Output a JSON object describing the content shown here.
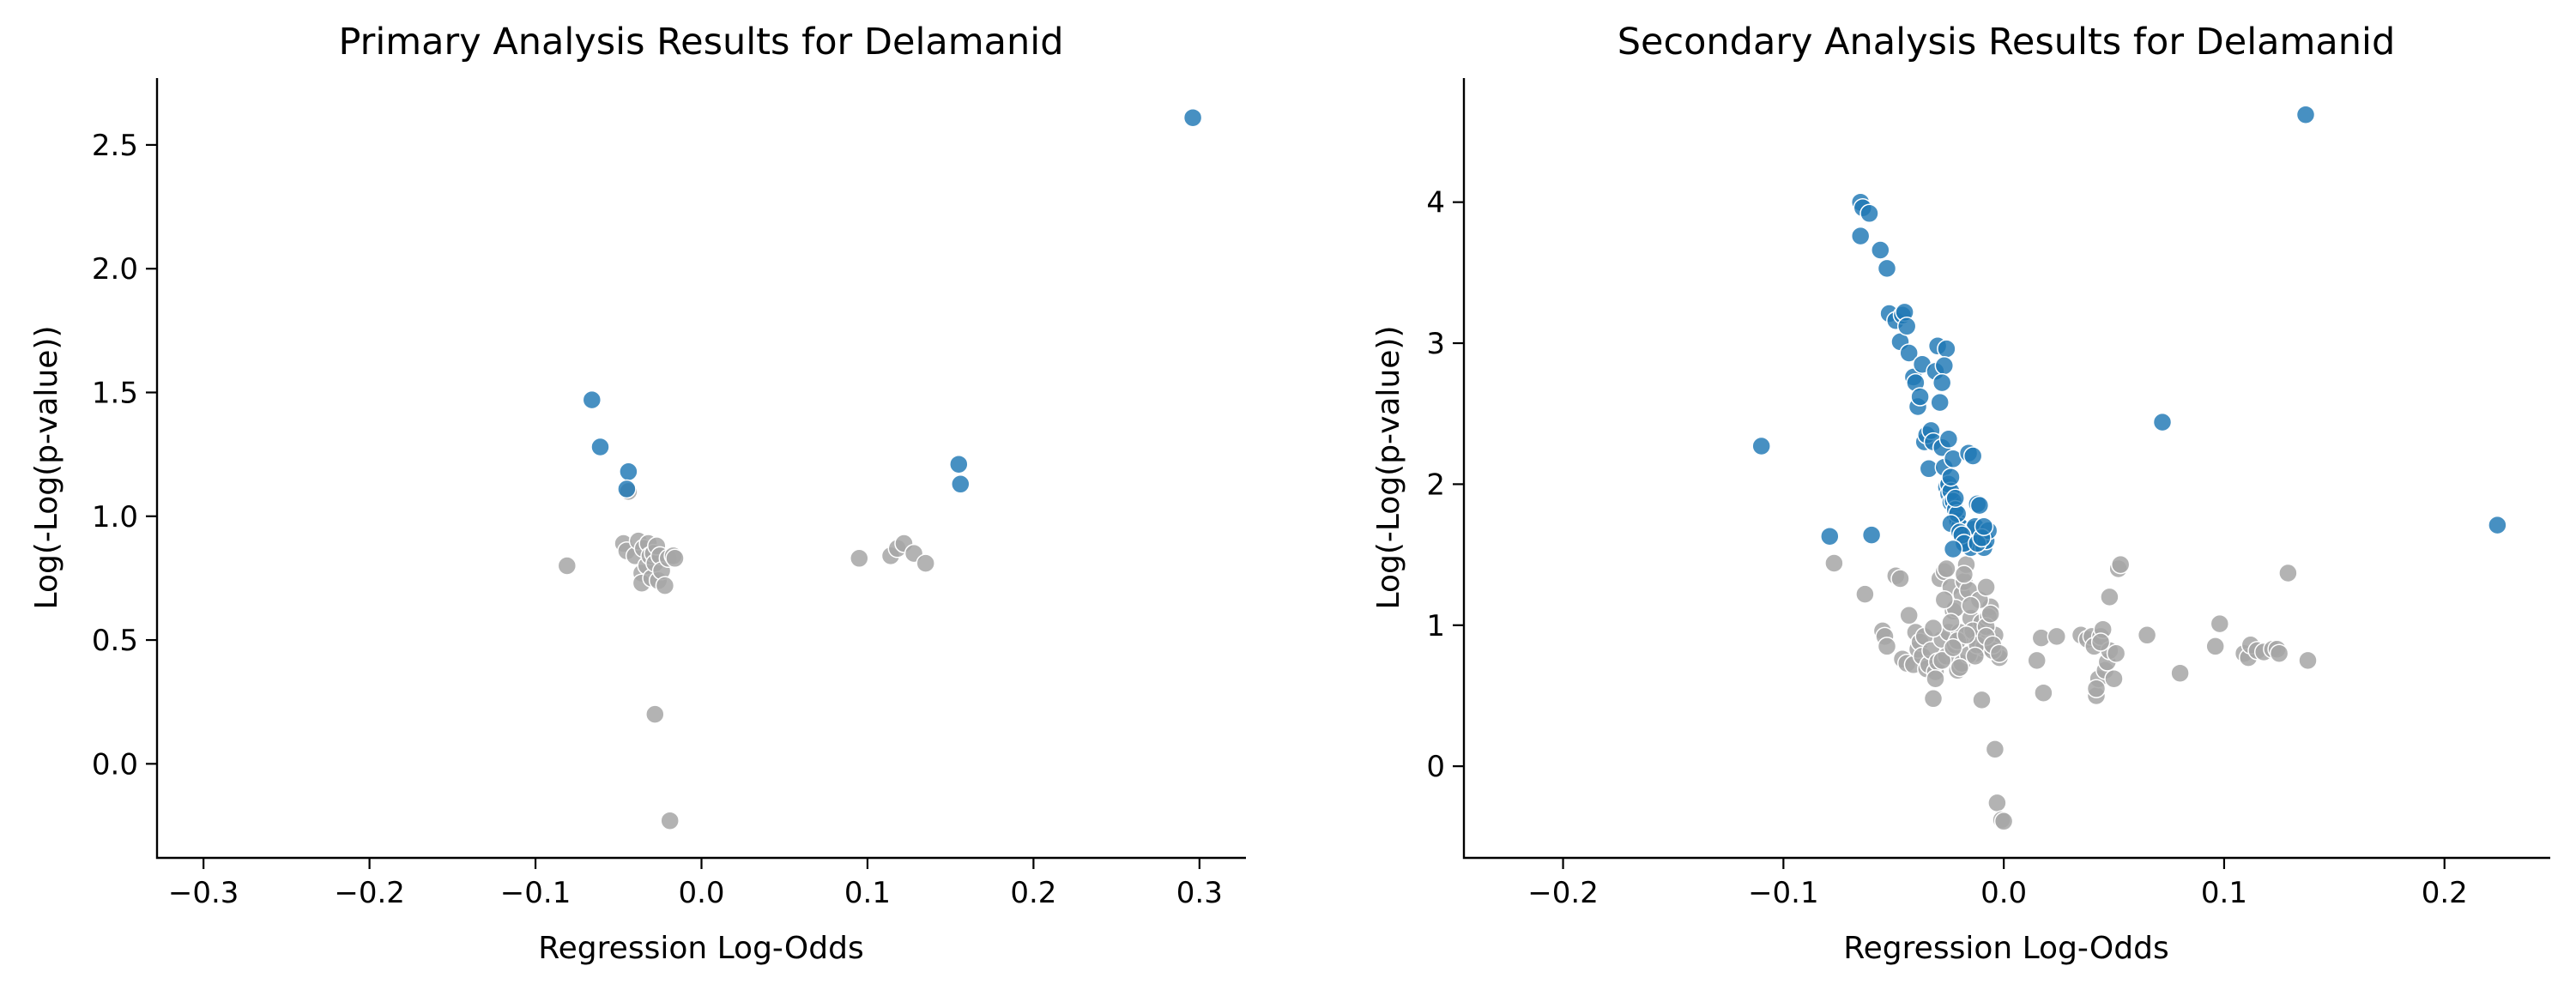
{
  "colors": {
    "significant": "#1f77b4",
    "nonsignificant": "#a6a6a6"
  },
  "chart_data": [
    {
      "type": "scatter",
      "title": "Primary Analysis Results for Delamanid",
      "xlabel": "Regression Log-Odds",
      "ylabel": "Log(-Log(p-value))",
      "xlim": [
        -0.328,
        0.328
      ],
      "ylim": [
        -0.38,
        2.77
      ],
      "xticks": [
        -0.3,
        -0.2,
        -0.1,
        0.0,
        0.1,
        0.2,
        0.3
      ],
      "xtick_labels": [
        "−0.3",
        "−0.2",
        "−0.1",
        "0.0",
        "0.1",
        "0.2",
        "0.3"
      ],
      "yticks": [
        0.0,
        0.5,
        1.0,
        1.5,
        2.0,
        2.5
      ],
      "ytick_labels": [
        "0.0",
        "0.5",
        "1.0",
        "1.5",
        "2.0",
        "2.5"
      ],
      "grid": false,
      "series": [
        {
          "color_key": "nonsignificant",
          "x": [
            -0.081,
            -0.047,
            -0.045,
            -0.04,
            -0.038,
            -0.036,
            -0.036,
            -0.035,
            -0.033,
            -0.032,
            -0.031,
            -0.03,
            -0.029,
            -0.028,
            -0.027,
            -0.026,
            -0.025,
            -0.024,
            -0.022,
            -0.02,
            -0.017,
            -0.016,
            -0.028,
            -0.019,
            -0.044,
            0.095,
            0.114,
            0.118,
            0.122,
            0.128,
            0.135
          ],
          "y": [
            0.8,
            0.89,
            0.86,
            0.84,
            0.9,
            0.77,
            0.73,
            0.87,
            0.8,
            0.89,
            0.84,
            0.75,
            0.85,
            0.81,
            0.88,
            0.74,
            0.84,
            0.78,
            0.72,
            0.83,
            0.84,
            0.83,
            0.2,
            -0.23,
            1.1,
            0.83,
            0.84,
            0.87,
            0.89,
            0.85,
            0.81
          ]
        },
        {
          "color_key": "significant",
          "x": [
            -0.066,
            -0.061,
            -0.044,
            -0.045,
            0.155,
            0.156,
            0.296
          ],
          "y": [
            1.47,
            1.28,
            1.18,
            1.11,
            1.21,
            1.13,
            2.61
          ]
        }
      ]
    },
    {
      "type": "scatter",
      "title": "Secondary Analysis Results for Delamanid",
      "xlabel": "Regression Log-Odds",
      "ylabel": "Log(-Log(p-value))",
      "xlim": [
        -0.245,
        0.248
      ],
      "ylim": [
        -0.65,
        4.88
      ],
      "xticks": [
        -0.2,
        -0.1,
        0.0,
        0.1,
        0.2
      ],
      "xtick_labels": [
        "−0.2",
        "−0.1",
        "0.0",
        "0.1",
        "0.2"
      ],
      "yticks": [
        0,
        1,
        2,
        3,
        4
      ],
      "ytick_labels": [
        "0",
        "1",
        "2",
        "3",
        "4"
      ],
      "grid": false,
      "series": [
        {
          "color_key": "nonsignificant",
          "x": [
            -0.077,
            -0.063,
            -0.055,
            -0.054,
            -0.053,
            -0.049,
            -0.047,
            -0.046,
            -0.044,
            -0.043,
            -0.041,
            -0.04,
            -0.039,
            -0.038,
            -0.037,
            -0.036,
            -0.035,
            -0.034,
            -0.033,
            -0.032,
            -0.031,
            -0.03,
            -0.029,
            -0.028,
            -0.027,
            -0.026,
            -0.025,
            -0.024,
            -0.023,
            -0.022,
            -0.021,
            -0.02,
            -0.019,
            -0.018,
            -0.017,
            -0.016,
            -0.015,
            -0.014,
            -0.013,
            -0.012,
            -0.011,
            -0.01,
            -0.009,
            -0.008,
            -0.007,
            -0.006,
            -0.005,
            -0.004,
            -0.003,
            -0.002,
            -0.026,
            -0.022,
            -0.018,
            -0.014,
            -0.011,
            -0.009,
            -0.008,
            -0.007,
            -0.019,
            -0.016,
            -0.012,
            -0.008,
            -0.006,
            -0.005,
            -0.032,
            -0.028,
            -0.024,
            -0.021,
            -0.015,
            -0.013,
            -0.031,
            -0.027,
            -0.023,
            -0.02,
            -0.017,
            -0.01,
            -0.004,
            -0.003,
            -0.001,
            0.0,
            -0.008,
            -0.005,
            -0.002,
            0.015,
            0.017,
            0.018,
            0.024,
            0.035,
            0.038,
            0.04,
            0.041,
            0.042,
            0.043,
            0.044,
            0.045,
            0.046,
            0.047,
            0.048,
            0.05,
            0.051,
            0.052,
            0.053,
            0.048,
            0.042,
            0.044,
            0.065,
            0.08,
            0.096,
            0.098,
            0.109,
            0.111,
            0.112,
            0.115,
            0.118,
            0.122,
            0.124,
            0.125,
            0.129,
            0.138
          ],
          "y": [
            1.44,
            1.22,
            0.96,
            0.92,
            0.85,
            1.35,
            1.33,
            0.76,
            0.73,
            1.07,
            0.72,
            0.95,
            0.83,
            0.88,
            0.78,
            0.92,
            0.69,
            0.72,
            0.82,
            0.48,
            0.67,
            0.74,
            1.33,
            0.9,
            1.38,
            0.78,
            0.95,
            1.27,
            1.1,
            0.86,
            0.68,
            0.95,
            1.22,
            1.31,
            1.43,
            1.25,
            1.05,
            0.92,
            0.8,
            0.88,
            0.95,
            1.02,
            0.85,
            0.9,
            0.83,
            1.13,
            0.88,
            0.93,
            0.8,
            0.77,
            1.4,
            1.12,
            1.36,
            0.96,
            1.18,
            0.84,
            1.27,
            1.06,
            0.73,
            0.79,
            0.86,
            0.99,
            1.08,
            0.82,
            0.98,
            0.75,
            1.02,
            0.89,
            1.14,
            0.78,
            0.62,
            1.18,
            0.84,
            0.7,
            0.93,
            0.47,
            0.12,
            -0.26,
            -0.38,
            -0.39,
            0.92,
            0.86,
            0.8,
            0.75,
            0.91,
            0.52,
            0.92,
            0.93,
            0.9,
            0.92,
            0.85,
            0.5,
            0.62,
            0.92,
            0.97,
            0.68,
            0.74,
            0.82,
            0.62,
            0.8,
            1.4,
            1.43,
            1.2,
            0.55,
            0.88,
            0.93,
            0.66,
            0.85,
            1.01,
            0.8,
            0.77,
            0.86,
            0.82,
            0.81,
            0.83,
            0.83,
            0.8,
            1.37,
            0.75
          ]
        },
        {
          "color_key": "significant",
          "x": [
            -0.11,
            -0.079,
            -0.06,
            -0.065,
            -0.064,
            -0.065,
            -0.061,
            -0.056,
            -0.053,
            -0.052,
            -0.049,
            -0.047,
            -0.046,
            -0.045,
            -0.044,
            -0.043,
            -0.041,
            -0.04,
            -0.039,
            -0.038,
            -0.037,
            -0.036,
            -0.035,
            -0.034,
            -0.033,
            -0.032,
            -0.031,
            -0.03,
            -0.029,
            -0.028,
            -0.027,
            -0.026,
            -0.025,
            -0.024,
            -0.023,
            -0.022,
            -0.021,
            -0.02,
            -0.019,
            -0.018,
            -0.017,
            -0.016,
            -0.015,
            -0.014,
            -0.013,
            -0.012,
            -0.011,
            -0.01,
            -0.009,
            -0.008,
            -0.007,
            -0.026,
            -0.027,
            -0.028,
            -0.025,
            -0.024,
            -0.023,
            -0.022,
            -0.021,
            -0.024,
            -0.02,
            -0.019,
            -0.018,
            -0.016,
            -0.014,
            -0.012,
            -0.01,
            -0.009,
            -0.023,
            -0.025,
            -0.024,
            -0.022,
            0.072,
            0.137,
            0.224
          ],
          "y": [
            2.27,
            1.63,
            1.64,
            4.0,
            3.96,
            3.76,
            3.92,
            3.66,
            3.53,
            3.21,
            3.16,
            3.01,
            3.2,
            3.22,
            3.12,
            2.93,
            2.76,
            2.72,
            2.55,
            2.62,
            2.85,
            2.3,
            2.35,
            2.11,
            2.38,
            2.3,
            2.8,
            2.98,
            2.58,
            2.26,
            2.12,
            1.98,
            1.93,
            1.87,
            2.18,
            1.78,
            1.74,
            1.7,
            1.65,
            1.61,
            1.62,
            1.6,
            1.55,
            1.68,
            1.7,
            1.86,
            1.85,
            1.62,
            1.55,
            1.6,
            1.67,
            2.96,
            2.84,
            2.72,
            2.0,
            1.95,
            1.88,
            1.82,
            1.79,
            1.72,
            1.66,
            1.64,
            1.58,
            2.22,
            2.2,
            1.58,
            1.62,
            1.7,
            1.54,
            2.32,
            2.05,
            1.9,
            2.44,
            4.62,
            1.71
          ]
        }
      ]
    }
  ]
}
